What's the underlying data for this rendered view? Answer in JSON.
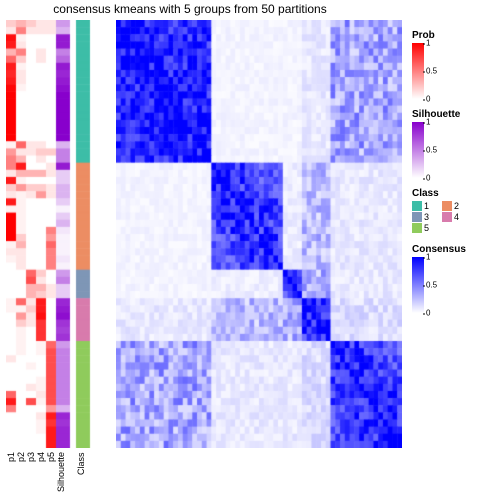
{
  "title": "consensus kmeans with 5 groups from 50 partitions",
  "title_fontsize": 12,
  "n_samples": 60,
  "annotation_columns": [
    {
      "name": "p1",
      "type": "prob",
      "width": 10
    },
    {
      "name": "p2",
      "type": "prob",
      "width": 10
    },
    {
      "name": "p3",
      "type": "prob",
      "width": 10
    },
    {
      "name": "p4",
      "type": "prob",
      "width": 10
    },
    {
      "name": "p5",
      "type": "prob",
      "width": 10
    },
    {
      "name": "Silhouette",
      "type": "silhouette",
      "width": 14
    },
    {
      "name": "",
      "type": "gap",
      "width": 6
    },
    {
      "name": "Class",
      "type": "class",
      "width": 14
    }
  ],
  "class_blocks": [
    {
      "class": 1,
      "size": 20,
      "color": "#3DBDA7"
    },
    {
      "class": 2,
      "size": 15,
      "color": "#EC8D63"
    },
    {
      "class": 3,
      "size": 4,
      "color": "#7E96B6"
    },
    {
      "class": 4,
      "size": 6,
      "color": "#D87BAC"
    },
    {
      "class": 5,
      "size": 15,
      "color": "#8FCB5C"
    }
  ],
  "prob_data": {
    "p1": {
      "high_block": 0,
      "highs": [
        0.2,
        0.1,
        0.95,
        0.9,
        0.3,
        0.6,
        0.9,
        0.85,
        0.9,
        0.98,
        1.0,
        1.0,
        1.0,
        1.0,
        1.0,
        1.0,
        1.0,
        0.05,
        0.4,
        0.5
      ],
      "rest": [
        0.5,
        0.1,
        0.9,
        0.2,
        0.1,
        0.9,
        0.05,
        1.0,
        1.0,
        1.0,
        1.0,
        0.05,
        0.1,
        0.05,
        0.0,
        0.0,
        0.0,
        0.0,
        0.0,
        0.05,
        0.05,
        0.0,
        0.0,
        0.0,
        0.0,
        0.0,
        0.0,
        0.1,
        0.0,
        0.0,
        0.0,
        0.0,
        0.6,
        0.9,
        0.5,
        0.0,
        0.0,
        0.0,
        0.0,
        0.0
      ]
    },
    "p2": {
      "high_block": 1,
      "highs": [
        0.9,
        0.3,
        0.05,
        0.4,
        0.05,
        0.05,
        0.05,
        0.05,
        0.05,
        0.05,
        0.2,
        0.3,
        0.1,
        0.1,
        0.1
      ],
      "rest": [
        0.3,
        0.5,
        0.05,
        0.1,
        0.5,
        0.2,
        0.05,
        0.1,
        0.1,
        0.05,
        0.0,
        0.0,
        0.0,
        0.0,
        0.0,
        0.0,
        0.0,
        0.6,
        0.1,
        0.3,
        0.0,
        0.0,
        0.0,
        0.0,
        0.6,
        0.05,
        0.4,
        0.2,
        0.05,
        0.05,
        0.05,
        0.05,
        0.0,
        0.0,
        0.0,
        0.0,
        0.0,
        0.0,
        0.0,
        0.0,
        0.0,
        0.0,
        0.0,
        0.0,
        0.0
      ]
    },
    "p3": {
      "high_block": 2,
      "highs": [
        0.6,
        0.7,
        0.3,
        0.3
      ],
      "rest": [
        0.2,
        0.1,
        0.0,
        0.0,
        0.0,
        0.0,
        0.0,
        0.0,
        0.0,
        0.0,
        0.0,
        0.0,
        0.0,
        0.0,
        0.0,
        0.0,
        0.0,
        0.1,
        0.1,
        0.0,
        0.0,
        0.3,
        0.0,
        0.2,
        0.1,
        0.0,
        0.0,
        0.0,
        0.0,
        0.0,
        0.0,
        0.0,
        0.0,
        0.0,
        0.0,
        0.1,
        0.2,
        0.1,
        0.1,
        0.0,
        0.0,
        0.0,
        0.0,
        0.0,
        0.05,
        0.0,
        0.0,
        0.1,
        0.0,
        0.7,
        0.0,
        0.0,
        0.0,
        0.0,
        0.0,
        0.0
      ]
    },
    "p4": {
      "high_block": 3,
      "highs": [
        0.9,
        0.9,
        0.95,
        0.8,
        0.8,
        0.8
      ],
      "rest": [
        0.1,
        0.1,
        0.0,
        0.0,
        0.1,
        0.1,
        0.0,
        0.0,
        0.0,
        0.0,
        0.0,
        0.0,
        0.0,
        0.0,
        0.0,
        0.0,
        0.0,
        0.1,
        0.2,
        0.1,
        0.0,
        0.3,
        0.0,
        0.2,
        0.4,
        0.0,
        0.0,
        0.0,
        0.0,
        0.0,
        0.0,
        0.0,
        0.0,
        0.0,
        0.0,
        0.2,
        0.1,
        0.3,
        0.2,
        0.05,
        0.05,
        0.0,
        0.0,
        0.0,
        0.05,
        0.05,
        0.1,
        0.05,
        0.0,
        0.1,
        0.05,
        0.05,
        0.0,
        0.0
      ]
    },
    "p5": {
      "high_block": 4,
      "highs": [
        0.6,
        0.7,
        0.7,
        0.7,
        0.7,
        0.7,
        0.7,
        0.7,
        0.7,
        0.4,
        0.9,
        0.8,
        0.9,
        0.9,
        0.9
      ],
      "rest": [
        0.1,
        0.1,
        0.0,
        0.0,
        0.0,
        0.0,
        0.0,
        0.0,
        0.0,
        0.0,
        0.0,
        0.0,
        0.0,
        0.0,
        0.0,
        0.0,
        0.0,
        0.0,
        0.2,
        0.0,
        0.1,
        0.1,
        0.0,
        0.1,
        0.1,
        0.0,
        0.0,
        0.0,
        0.0,
        0.5,
        0.4,
        0.6,
        0.5,
        0.5,
        0.5,
        0.0,
        0.0,
        0.1,
        0.1,
        0.0,
        0.0,
        0.0,
        0.0,
        0.0,
        0.0
      ]
    }
  },
  "silhouette_data": [
    0.4,
    0.3,
    0.9,
    0.9,
    0.5,
    0.6,
    0.9,
    0.85,
    0.9,
    0.95,
    1.0,
    1.0,
    1.0,
    1.0,
    1.0,
    1.0,
    1.0,
    0.3,
    0.5,
    0.5,
    0.9,
    0.2,
    0.2,
    0.3,
    0.3,
    0.2,
    0.05,
    0.2,
    0.3,
    0.1,
    0.05,
    0.05,
    0.05,
    0.1,
    0.05,
    0.4,
    0.5,
    0.2,
    0.2,
    0.85,
    0.9,
    0.95,
    0.8,
    0.75,
    0.8,
    0.4,
    0.5,
    0.5,
    0.5,
    0.5,
    0.5,
    0.5,
    0.5,
    0.5,
    0.3,
    0.85,
    0.8,
    0.85,
    0.85,
    0.85
  ],
  "legends": {
    "prob": {
      "title": "Prob",
      "gradient_top": "#ff0000",
      "gradient_bottom": "#ffffff",
      "ticks": [
        {
          "v": 1,
          "pos": 0
        },
        {
          "v": 0.5,
          "pos": 50
        },
        {
          "v": 0,
          "pos": 100
        }
      ]
    },
    "silhouette": {
      "title": "Silhouette",
      "gradient_top": "#8800cc",
      "gradient_bottom": "#ffffff",
      "ticks": [
        {
          "v": 1,
          "pos": 0
        },
        {
          "v": 0.5,
          "pos": 50
        },
        {
          "v": 0,
          "pos": 100
        }
      ]
    },
    "class": {
      "title": "Class",
      "items": [
        {
          "label": "1",
          "color": "#3DBDA7"
        },
        {
          "label": "2",
          "color": "#EC8D63"
        },
        {
          "label": "3",
          "color": "#7E96B6"
        },
        {
          "label": "4",
          "color": "#D87BAC"
        },
        {
          "label": "5",
          "color": "#8FCB5C"
        }
      ]
    },
    "consensus": {
      "title": "Consensus",
      "gradient_top": "#0000ff",
      "gradient_bottom": "#ffffff",
      "ticks": [
        {
          "v": 1,
          "pos": 0
        },
        {
          "v": 0.5,
          "pos": 50
        },
        {
          "v": 0,
          "pos": 100
        }
      ]
    }
  },
  "heatmap": {
    "color_high": "#0000ff",
    "color_low": "#ffffff",
    "cross_block_consensus": {
      "0-1": 0.05,
      "0-2": 0.05,
      "0-3": 0.1,
      "0-4": 0.4,
      "1-2": 0.08,
      "1-3": 0.3,
      "1-4": 0.1,
      "2-3": 0.35,
      "2-4": 0.1,
      "3-4": 0.15
    },
    "within_block_base": {
      "0": 0.85,
      "1": 0.6,
      "2": 0.7,
      "3": 0.8,
      "4": 0.65
    }
  }
}
